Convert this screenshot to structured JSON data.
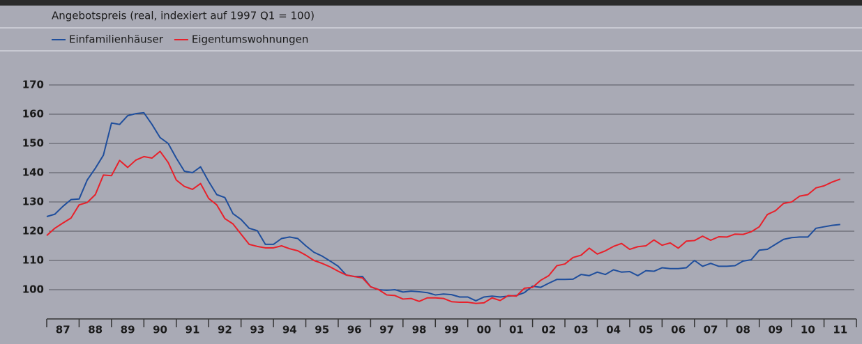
{
  "chart_data": {
    "type": "line",
    "subtitle": "Angebotspreis (real, indexiert auf 1997 Q1 = 100)",
    "x": [
      1987,
      1987.25,
      1987.5,
      1987.75,
      1988,
      1988.25,
      1988.5,
      1988.75,
      1989,
      1989.25,
      1989.5,
      1989.75,
      1990,
      1990.25,
      1990.5,
      1990.75,
      1991,
      1991.25,
      1991.5,
      1991.75,
      1992,
      1992.25,
      1992.5,
      1992.75,
      1993,
      1993.25,
      1993.5,
      1993.75,
      1994,
      1994.25,
      1994.5,
      1994.75,
      1995,
      1995.25,
      1995.5,
      1995.75,
      1996,
      1996.25,
      1996.5,
      1996.75,
      1997,
      1997.25,
      1997.5,
      1997.75,
      1998,
      1998.25,
      1998.5,
      1998.75,
      1999,
      1999.25,
      1999.5,
      1999.75,
      2000,
      2000.25,
      2000.5,
      2000.75,
      2001,
      2001.25,
      2001.5,
      2001.75,
      2002,
      2002.25,
      2002.5,
      2002.75,
      2003,
      2003.25,
      2003.5,
      2003.75,
      2004,
      2004.25,
      2004.5,
      2004.75,
      2005,
      2005.25,
      2005.5,
      2005.75,
      2006,
      2006.25,
      2006.5,
      2006.75,
      2007,
      2007.25,
      2007.5,
      2007.75,
      2008,
      2008.25,
      2008.5,
      2008.75,
      2009,
      2009.25,
      2009.5,
      2009.75,
      2010,
      2010.25,
      2010.5,
      2010.75,
      2011,
      2011.25,
      2011.5
    ],
    "series": [
      {
        "name": "Einfamilienhäuser",
        "color": "#1f4e9c",
        "values": [
          125,
          125.8,
          128.5,
          130.8,
          131,
          137.5,
          141.5,
          146,
          157,
          156.5,
          159.5,
          160.2,
          160.5,
          156.5,
          152,
          150,
          145,
          140.5,
          140,
          142,
          137,
          132.5,
          131.5,
          126,
          124,
          121,
          120.2,
          115.5,
          115.5,
          117.5,
          118,
          117.5,
          115,
          112.8,
          111.5,
          109.8,
          108,
          105,
          104.5,
          104.5,
          101,
          100,
          99.8,
          100,
          99.2,
          99.5,
          99.3,
          99,
          98.2,
          98.5,
          98.3,
          97.5,
          97.5,
          96.2,
          97.5,
          97.8,
          97.5,
          97.8,
          98,
          99,
          101.2,
          100.8,
          102.2,
          103.5,
          103.5,
          103.6,
          105.2,
          104.8,
          106,
          105.2,
          106.8,
          106,
          106.2,
          104.8,
          106.5,
          106.3,
          107.5,
          107.2,
          107.2,
          107.5,
          110,
          108,
          109,
          108,
          108,
          108.2,
          109.8,
          110.2,
          113.5,
          113.8,
          115.5,
          117.2,
          117.8,
          118,
          118,
          121,
          121.5,
          122,
          122.3
        ]
      },
      {
        "name": "Eigentumswohnungen",
        "color": "#e8202a",
        "values": [
          118.5,
          121,
          122.8,
          124.5,
          129,
          129.8,
          132.5,
          139.2,
          139,
          144.2,
          141.8,
          144.3,
          145.5,
          145,
          147.3,
          143.5,
          137.5,
          135.3,
          134.3,
          136.3,
          131.2,
          129,
          124.3,
          122.5,
          119,
          115.5,
          114.8,
          114.3,
          114.3,
          115,
          114,
          113.3,
          111.8,
          110,
          109,
          107.8,
          106.3,
          105,
          104.5,
          104,
          101,
          100,
          98.2,
          98,
          96.8,
          97,
          96,
          97.2,
          97.2,
          97,
          95.9,
          95.7,
          95.7,
          95.3,
          95.5,
          97.2,
          96.3,
          98,
          97.8,
          100.5,
          100.8,
          103.2,
          104.8,
          108.2,
          108.8,
          111,
          111.8,
          114.2,
          112.2,
          113.3,
          114.8,
          115.8,
          113.8,
          114.7,
          115,
          117,
          115.2,
          116,
          114.2,
          116.6,
          116.8,
          118.3,
          116.9,
          118.1,
          118,
          119,
          118.9,
          119.8,
          121.5,
          125.7,
          127,
          129.5,
          130,
          132,
          132.5,
          134.8,
          135.5,
          136.8,
          137.8
        ]
      }
    ],
    "xlim": [
      1987,
      2012
    ],
    "xticks": [
      1987,
      1988,
      1989,
      1990,
      1991,
      1992,
      1993,
      1994,
      1995,
      1996,
      1997,
      1998,
      1999,
      2000,
      2001,
      2002,
      2003,
      2004,
      2005,
      2006,
      2007,
      2008,
      2009,
      2010,
      2011,
      2012
    ],
    "year_labels": [
      {
        "value": 1987.5,
        "label": "87"
      },
      {
        "value": 1988.5,
        "label": "88"
      },
      {
        "value": 1989.5,
        "label": "89"
      },
      {
        "value": 1990.5,
        "label": "90"
      },
      {
        "value": 1991.5,
        "label": "91"
      },
      {
        "value": 1992.5,
        "label": "92"
      },
      {
        "value": 1993.5,
        "label": "93"
      },
      {
        "value": 1994.5,
        "label": "94"
      },
      {
        "value": 1995.5,
        "label": "95"
      },
      {
        "value": 1996.5,
        "label": "96"
      },
      {
        "value": 1997.5,
        "label": "97"
      },
      {
        "value": 1998.5,
        "label": "98"
      },
      {
        "value": 1999.5,
        "label": "99"
      },
      {
        "value": 2000.5,
        "label": "00"
      },
      {
        "value": 2001.5,
        "label": "01"
      },
      {
        "value": 2002.5,
        "label": "02"
      },
      {
        "value": 2003.5,
        "label": "03"
      },
      {
        "value": 2004.5,
        "label": "04"
      },
      {
        "value": 2005.5,
        "label": "05"
      },
      {
        "value": 2006.5,
        "label": "06"
      },
      {
        "value": 2007.5,
        "label": "07"
      },
      {
        "value": 2008.5,
        "label": "08"
      },
      {
        "value": 2009.5,
        "label": "09"
      },
      {
        "value": 2010.5,
        "label": "10"
      },
      {
        "value": 2011.5,
        "label": "11"
      }
    ],
    "ylim": [
      90,
      175
    ],
    "yticks": [
      100,
      110,
      120,
      130,
      140,
      150,
      160,
      170
    ],
    "grid": true
  }
}
